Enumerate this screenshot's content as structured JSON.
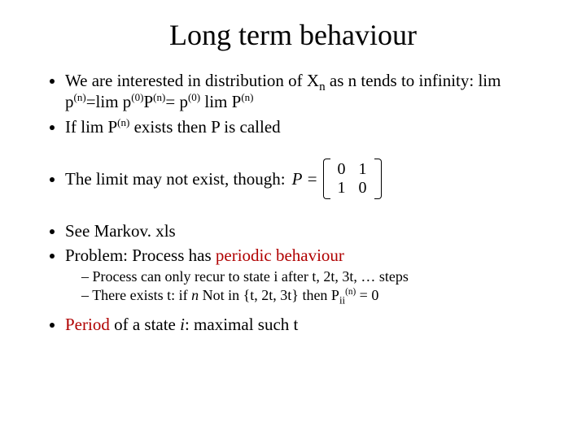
{
  "title": "Long term behaviour",
  "b1_a": "We are interested in distribution of X",
  "b1_sub_n": "n",
  "b1_b": " as n tends to infinity: lim p",
  "b1_sup1": "(n)",
  "b1_c": "=lim p",
  "b1_sup2": "(0)",
  "b1_d": "P",
  "b1_sup3": "(n)",
  "b1_e": "= p",
  "b1_sup4": "(0)",
  "b1_f": " lim P",
  "b1_sup5": "(n)",
  "b2_a": "If lim P",
  "b2_sup": "(n)",
  "b2_b": " exists then P is called",
  "b3_a": "The limit may not exist, though:",
  "matrix_label": "P =",
  "matrix": {
    "r0c0": "0",
    "r0c1": "1",
    "r1c0": "1",
    "r1c1": "0"
  },
  "b4": "See Markov. xls",
  "b5_a": "Problem: Process has ",
  "b5_red": "periodic behaviour",
  "s1": "Process can only recur to state i after t, 2t, 3t, … steps",
  "s2_a": "There exists t: if ",
  "s2_n": "n",
  "s2_b": " Not in {t, 2t, 3t} then P",
  "s2_sub": "ii",
  "s2_sup": "(n)",
  "s2_c": " = 0",
  "b6_red": "Period",
  "b6_a": " of a state ",
  "b6_i": "i",
  "b6_b": ": maximal such t"
}
